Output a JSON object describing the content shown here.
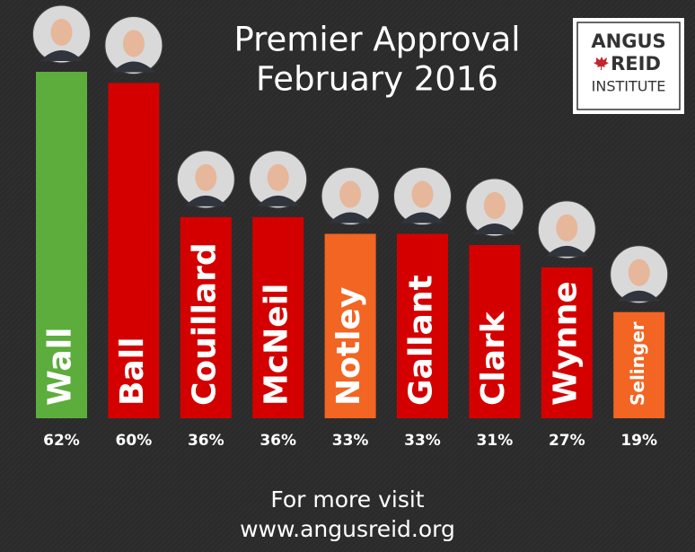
{
  "chart_data": {
    "type": "bar",
    "title": "Premier Approval",
    "subtitle": "February 2016",
    "categories": [
      "Wall",
      "Ball",
      "Couillard",
      "McNeil",
      "Notley",
      "Gallant",
      "Clark",
      "Wynne",
      "Selinger"
    ],
    "values": [
      62,
      60,
      36,
      36,
      33,
      33,
      31,
      27,
      19
    ],
    "value_labels": [
      "62%",
      "60%",
      "36%",
      "36%",
      "33%",
      "33%",
      "31%",
      "27%",
      "19%"
    ],
    "colors": [
      "#5cad3c",
      "#d40000",
      "#d40000",
      "#d40000",
      "#f26522",
      "#d40000",
      "#d40000",
      "#d40000",
      "#f26522"
    ],
    "footer": [
      "For more visit",
      "www.angusreid.org"
    ],
    "logo": [
      "ANGUS",
      "REID",
      "INSTITUTE"
    ]
  }
}
